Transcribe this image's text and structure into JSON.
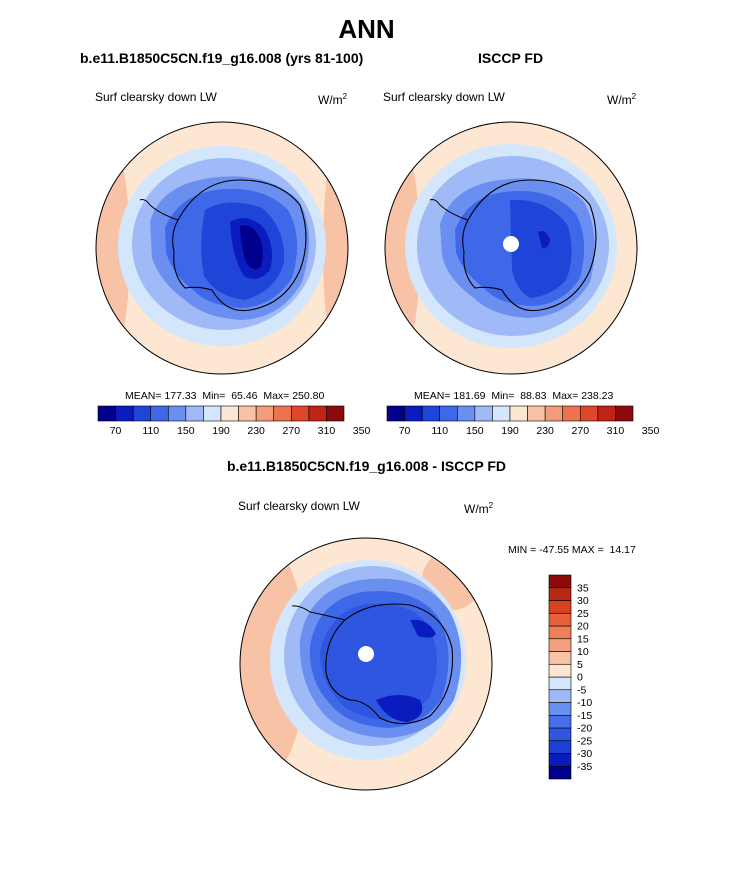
{
  "title": "ANN",
  "panels": [
    {
      "id": "model",
      "subtitle": "b.e11.B1850C5CN.f19_g16.008 (yrs 81-100)",
      "variable": "Surf clearsky down LW",
      "unit_base": "W/m",
      "unit_exp": "2",
      "stats": "MEAN= 177.33  Min=  65.46  Max= 250.80"
    },
    {
      "id": "obs",
      "subtitle": "ISCCP FD",
      "variable": "Surf clearsky down LW",
      "unit_base": "W/m",
      "unit_exp": "2",
      "stats": "MEAN= 181.69  Min=  88.83  Max= 238.23"
    },
    {
      "id": "diff",
      "subtitle": "b.e11.B1850C5CN.f19_g16.008 - ISCCP FD",
      "variable": "Surf clearsky down LW",
      "unit_base": "W/m",
      "unit_exp": "2",
      "stats": "MIN = -47.55 MAX =  14.17"
    }
  ],
  "colorbar_main": {
    "colors": [
      "#00008c",
      "#0a1cbe",
      "#1f44d8",
      "#3f68e8",
      "#6b8ff0",
      "#9fbaf6",
      "#d4e6fb",
      "#fde6d2",
      "#f7c2a6",
      "#f29c7c",
      "#ed7350",
      "#e0472a",
      "#c02418",
      "#8c0a0a"
    ],
    "labels": [
      "70",
      "110",
      "150",
      "190",
      "230",
      "270",
      "310",
      "350"
    ]
  },
  "colorbar_diff": {
    "colors": [
      "#00008c",
      "#0a1cbe",
      "#1f3fd4",
      "#2e56e0",
      "#456fe8",
      "#6b8ff0",
      "#9fbaf6",
      "#d4e6fb",
      "#fde6d2",
      "#f7c2a6",
      "#f2a07e",
      "#ee7f56",
      "#e8613a",
      "#d8421f",
      "#b82812",
      "#8c0a0a"
    ],
    "labels": [
      "35",
      "30",
      "25",
      "20",
      "15",
      "10",
      "5",
      "0",
      "-5",
      "-10",
      "-15",
      "-20",
      "-25",
      "-30",
      "-35"
    ]
  },
  "chart_data": [
    {
      "type": "heatmap",
      "title": "b.e11.B1850C5CN.f19_g16.008 (yrs 81-100)",
      "variable": "Surf clearsky down LW",
      "unit": "W/m2",
      "projection": "south polar stereographic",
      "mean": 177.33,
      "min": 65.46,
      "max": 250.8,
      "levels": [
        70,
        90,
        110,
        130,
        150,
        170,
        190,
        210,
        230,
        250,
        270,
        290,
        310,
        330,
        350
      ]
    },
    {
      "type": "heatmap",
      "title": "ISCCP FD",
      "variable": "Surf clearsky down LW",
      "unit": "W/m2",
      "projection": "south polar stereographic",
      "mean": 181.69,
      "min": 88.83,
      "max": 238.23,
      "levels": [
        70,
        90,
        110,
        130,
        150,
        170,
        190,
        210,
        230,
        250,
        270,
        290,
        310,
        330,
        350
      ]
    },
    {
      "type": "heatmap",
      "title": "b.e11.B1850C5CN.f19_g16.008 - ISCCP FD",
      "variable": "Surf clearsky down LW",
      "unit": "W/m2",
      "projection": "south polar stereographic",
      "min": -47.55,
      "max": 14.17,
      "levels": [
        -35,
        -30,
        -25,
        -20,
        -15,
        -10,
        -5,
        0,
        5,
        10,
        15,
        20,
        25,
        30,
        35
      ]
    }
  ]
}
